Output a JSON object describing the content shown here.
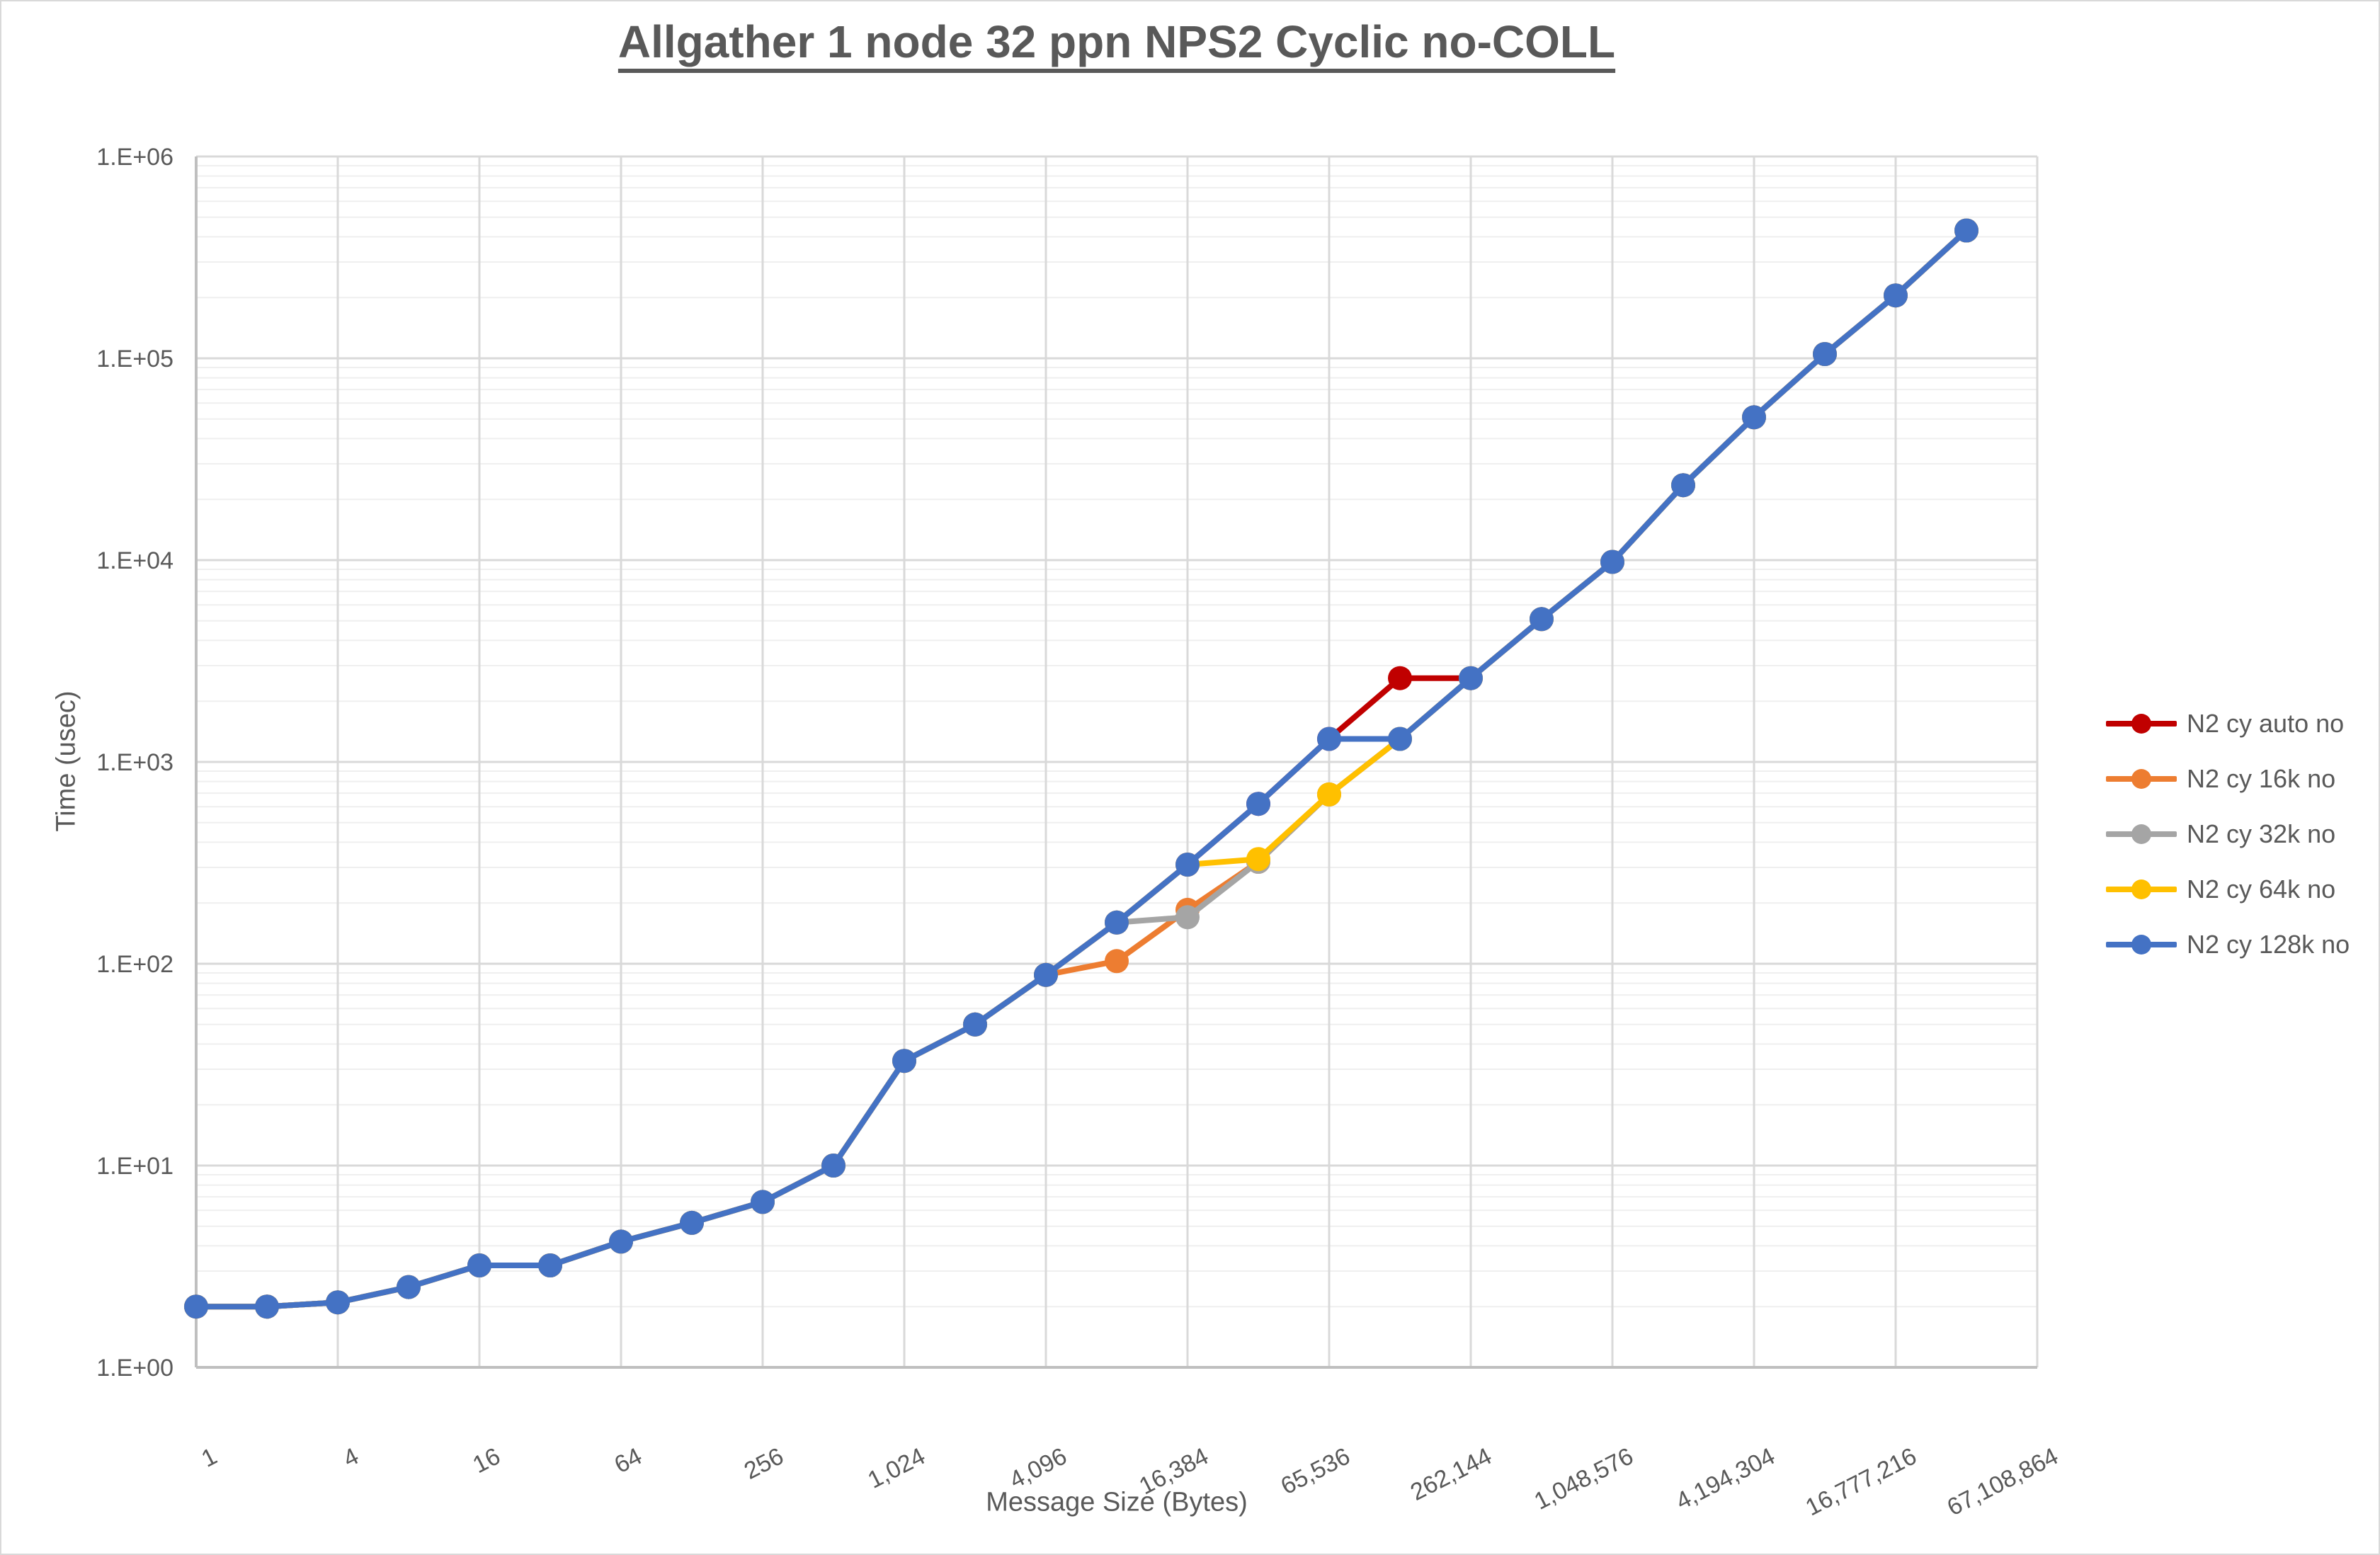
{
  "chart_data": {
    "type": "line",
    "title": "Allgather 1 node 32 ppn NPS2 Cyclic no-COLL",
    "xlabel": "Message Size (Bytes)",
    "ylabel": "Time (usec)",
    "x_scale": "log2-categories",
    "y_scale": "log10",
    "ylim": [
      1,
      1000000
    ],
    "grid": true,
    "legend_position": "right",
    "y_tick_labels": [
      "1.E+00",
      "1.E+01",
      "1.E+02",
      "1.E+03",
      "1.E+04",
      "1.E+05",
      "1.E+06"
    ],
    "x_axis_categories": [
      1,
      2,
      4,
      8,
      16,
      32,
      64,
      128,
      256,
      512,
      1024,
      2048,
      4096,
      8192,
      16384,
      32768,
      65536,
      131072,
      262144,
      524288,
      1048576,
      2097152,
      4194304,
      8388608,
      16777216,
      33554432,
      67108864
    ],
    "x_tick_labels": [
      "1",
      "4",
      "16",
      "64",
      "256",
      "1,024",
      "4,096",
      "16,384",
      "65,536",
      "262,144",
      "1,048,576",
      "4,194,304",
      "16,777,216",
      "67,108,864"
    ],
    "sizes": [
      1,
      2,
      4,
      8,
      16,
      32,
      64,
      128,
      256,
      512,
      1024,
      2048,
      4096,
      8192,
      16384,
      32768,
      65536,
      131072,
      262144,
      524288,
      1048576,
      2097152,
      4194304,
      8388608,
      16777216,
      33554432
    ],
    "series": [
      {
        "name": "N2 cy auto no",
        "color": "#C00000",
        "values": [
          2.0,
          2.0,
          2.1,
          2.5,
          3.2,
          3.2,
          4.2,
          5.2,
          6.6,
          10,
          33,
          50,
          88,
          160,
          310,
          620,
          1300,
          2600,
          2600,
          5100,
          9800,
          23500,
          51000,
          105000,
          205000,
          430000
        ]
      },
      {
        "name": "N2 cy 16k no",
        "color": "#ED7D31",
        "values": [
          2.0,
          2.0,
          2.1,
          2.5,
          3.2,
          3.2,
          4.2,
          5.2,
          6.6,
          10,
          33,
          50,
          88,
          103,
          185,
          320,
          690,
          1300,
          2600,
          5100,
          9800,
          23500,
          51000,
          105000,
          205000,
          430000
        ]
      },
      {
        "name": "N2 cy 32k no",
        "color": "#A5A5A5",
        "values": [
          2.0,
          2.0,
          2.1,
          2.5,
          3.2,
          3.2,
          4.2,
          5.2,
          6.6,
          10,
          33,
          50,
          88,
          160,
          170,
          320,
          690,
          1300,
          2600,
          5100,
          9800,
          23500,
          51000,
          105000,
          205000,
          430000
        ]
      },
      {
        "name": "N2 cy 64k no",
        "color": "#FFC000",
        "values": [
          2.0,
          2.0,
          2.1,
          2.5,
          3.2,
          3.2,
          4.2,
          5.2,
          6.6,
          10,
          33,
          50,
          88,
          160,
          310,
          330,
          690,
          1300,
          2600,
          5100,
          9800,
          23500,
          51000,
          105000,
          205000,
          430000
        ]
      },
      {
        "name": "N2 cy 128k no",
        "color": "#4472C4",
        "values": [
          2.0,
          2.0,
          2.1,
          2.5,
          3.2,
          3.2,
          4.2,
          5.2,
          6.6,
          10,
          33,
          50,
          88,
          160,
          310,
          620,
          1300,
          1300,
          2600,
          5100,
          9800,
          23500,
          51000,
          105000,
          205000,
          430000
        ]
      }
    ],
    "colors": {
      "text": "#595959",
      "axis_line": "#BFBFBF",
      "grid_major": "#D9D9D9",
      "grid_minor": "#EFEFEF",
      "background": "#FFFFFF"
    }
  }
}
